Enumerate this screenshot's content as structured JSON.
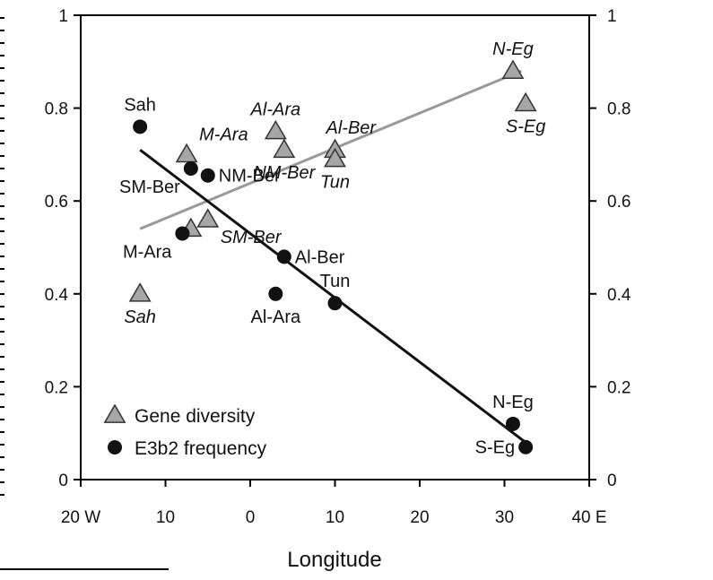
{
  "chart_data": {
    "type": "scatter",
    "xlabel": "Longitude",
    "xlim": [
      -20,
      40
    ],
    "ylim": [
      0,
      1
    ],
    "x_ticks": [
      {
        "value": -20,
        "label": "20 W"
      },
      {
        "value": -10,
        "label": "10"
      },
      {
        "value": 0,
        "label": "0"
      },
      {
        "value": 10,
        "label": "10"
      },
      {
        "value": 20,
        "label": "20"
      },
      {
        "value": 30,
        "label": "30"
      },
      {
        "value": 40,
        "label": "40 E"
      }
    ],
    "y_ticks_left": [
      {
        "value": 0,
        "label": "0"
      },
      {
        "value": 0.2,
        "label": "0.2"
      },
      {
        "value": 0.4,
        "label": "0.4"
      },
      {
        "value": 0.6,
        "label": "0.6"
      },
      {
        "value": 0.8,
        "label": "0.8"
      },
      {
        "value": 1,
        "label": "1"
      }
    ],
    "y_ticks_right": [
      {
        "value": 0,
        "label": "0"
      },
      {
        "value": 0.2,
        "label": "0.2"
      },
      {
        "value": 0.4,
        "label": "0.4"
      },
      {
        "value": 0.6,
        "label": "0.6"
      },
      {
        "value": 0.8,
        "label": "0.8"
      },
      {
        "value": 1,
        "label": "1"
      }
    ],
    "series": [
      {
        "name": "Gene diversity",
        "marker": "triangle",
        "color": "#a6a6a6",
        "label_style": "italic",
        "points": [
          {
            "label": "Sah",
            "x": -13,
            "y": 0.4,
            "label_anchor": "below"
          },
          {
            "label": "M-Ara",
            "x": -7.5,
            "y": 0.7,
            "label_anchor": "above-right"
          },
          {
            "label": "SM-Ber",
            "x": -5,
            "y": 0.56,
            "label_anchor": "below-right"
          },
          {
            "label": "",
            "x": -7,
            "y": 0.54,
            "label_anchor": "none"
          },
          {
            "label": "Al-Ara",
            "x": 3,
            "y": 0.75,
            "label_anchor": "above"
          },
          {
            "label": "NM-Ber",
            "x": 4,
            "y": 0.71,
            "label_anchor": "below"
          },
          {
            "label": "Al-Ber",
            "x": 10,
            "y": 0.71,
            "label_anchor": "above-left"
          },
          {
            "label": "Tun",
            "x": 10,
            "y": 0.69,
            "label_anchor": "below"
          },
          {
            "label": "N-Eg",
            "x": 31,
            "y": 0.88,
            "label_anchor": "above"
          },
          {
            "label": "S-Eg",
            "x": 32.5,
            "y": 0.81,
            "label_anchor": "below"
          }
        ],
        "trendline": {
          "x": [
            -13,
            32
          ],
          "y": [
            0.54,
            0.88
          ],
          "color": "#999999"
        }
      },
      {
        "name": "E3b2 frequency",
        "marker": "circle",
        "color": "#111111",
        "label_style": "normal",
        "points": [
          {
            "label": "Sah",
            "x": -13,
            "y": 0.76,
            "label_anchor": "above"
          },
          {
            "label": "SM-Ber",
            "x": -7,
            "y": 0.67,
            "label_anchor": "below-left"
          },
          {
            "label": "NM-Ber",
            "x": -5,
            "y": 0.655,
            "label_anchor": "right"
          },
          {
            "label": "M-Ara",
            "x": -8,
            "y": 0.53,
            "label_anchor": "below-left"
          },
          {
            "label": "Al-Ber",
            "x": 4,
            "y": 0.48,
            "label_anchor": "right"
          },
          {
            "label": "Al-Ara",
            "x": 3,
            "y": 0.4,
            "label_anchor": "below"
          },
          {
            "label": "Tun",
            "x": 10,
            "y": 0.38,
            "label_anchor": "above"
          },
          {
            "label": "N-Eg",
            "x": 31,
            "y": 0.12,
            "label_anchor": "above"
          },
          {
            "label": "S-Eg",
            "x": 32.5,
            "y": 0.07,
            "label_anchor": "left"
          }
        ],
        "trendline": {
          "x": [
            -13,
            32.5
          ],
          "y": [
            0.71,
            0.08
          ],
          "color": "#111111"
        }
      }
    ],
    "legend": {
      "position": "bottom-left",
      "entries": [
        {
          "label": "Gene diversity",
          "marker": "triangle"
        },
        {
          "label": "E3b2 frequency",
          "marker": "circle"
        }
      ]
    }
  }
}
